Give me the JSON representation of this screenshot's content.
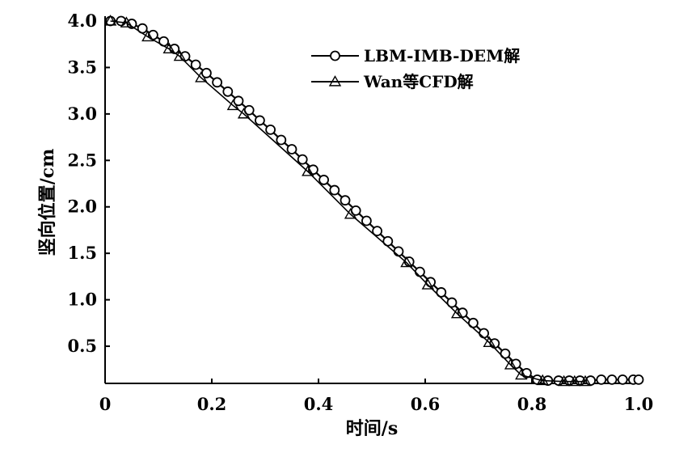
{
  "chart_data": {
    "type": "line",
    "title": "",
    "xlabel": "时间/s",
    "ylabel": "竖向位置/cm",
    "xlim": [
      0,
      1.0
    ],
    "ylim": [
      0.1,
      4.0
    ],
    "xticks": [
      "0",
      "0.2",
      "0.4",
      "0.6",
      "0.8",
      "1.0"
    ],
    "xtick_values": [
      0,
      0.2,
      0.4,
      0.6,
      0.8,
      1.0
    ],
    "yticks": [
      "4.0",
      "3.5",
      "3.0",
      "2.5",
      "2.0",
      "1.5",
      "1.0",
      "0.5"
    ],
    "ytick_values": [
      4.0,
      3.5,
      3.0,
      2.5,
      2.0,
      1.5,
      1.0,
      0.5
    ],
    "grid": false,
    "legend_position": "top-right",
    "series": [
      {
        "name": "LBM-IMB-DEM解",
        "marker": "circle",
        "color": "#000000",
        "x": [
          0.01,
          0.03,
          0.05,
          0.07,
          0.09,
          0.11,
          0.13,
          0.15,
          0.17,
          0.19,
          0.21,
          0.23,
          0.25,
          0.27,
          0.29,
          0.31,
          0.33,
          0.35,
          0.37,
          0.39,
          0.41,
          0.43,
          0.45,
          0.47,
          0.49,
          0.51,
          0.53,
          0.55,
          0.57,
          0.59,
          0.61,
          0.63,
          0.65,
          0.67,
          0.69,
          0.71,
          0.73,
          0.75,
          0.77,
          0.79,
          0.81,
          0.83,
          0.85,
          0.87,
          0.89,
          0.91,
          0.93,
          0.95,
          0.97,
          0.99,
          1.0
        ],
        "y": [
          4.0,
          4.0,
          3.97,
          3.92,
          3.85,
          3.78,
          3.7,
          3.62,
          3.53,
          3.44,
          3.34,
          3.24,
          3.14,
          3.04,
          2.93,
          2.83,
          2.72,
          2.62,
          2.51,
          2.4,
          2.29,
          2.18,
          2.07,
          1.96,
          1.85,
          1.74,
          1.63,
          1.52,
          1.41,
          1.3,
          1.19,
          1.08,
          0.97,
          0.86,
          0.75,
          0.64,
          0.53,
          0.42,
          0.31,
          0.21,
          0.14,
          0.13,
          0.13,
          0.13,
          0.13,
          0.13,
          0.14,
          0.14,
          0.14,
          0.14,
          0.14
        ]
      },
      {
        "name": "Wan等CFD解",
        "marker": "triangle",
        "color": "#000000",
        "x": [
          0.01,
          0.04,
          0.08,
          0.12,
          0.14,
          0.18,
          0.24,
          0.26,
          0.38,
          0.46,
          0.565,
          0.605,
          0.66,
          0.72,
          0.76,
          0.78,
          0.82,
          0.86,
          0.88,
          0.9
        ],
        "y": [
          4.0,
          3.98,
          3.83,
          3.7,
          3.62,
          3.39,
          3.09,
          3.0,
          2.38,
          1.92,
          1.4,
          1.16,
          0.85,
          0.54,
          0.3,
          0.19,
          0.13,
          0.12,
          0.12,
          0.12
        ]
      }
    ]
  }
}
